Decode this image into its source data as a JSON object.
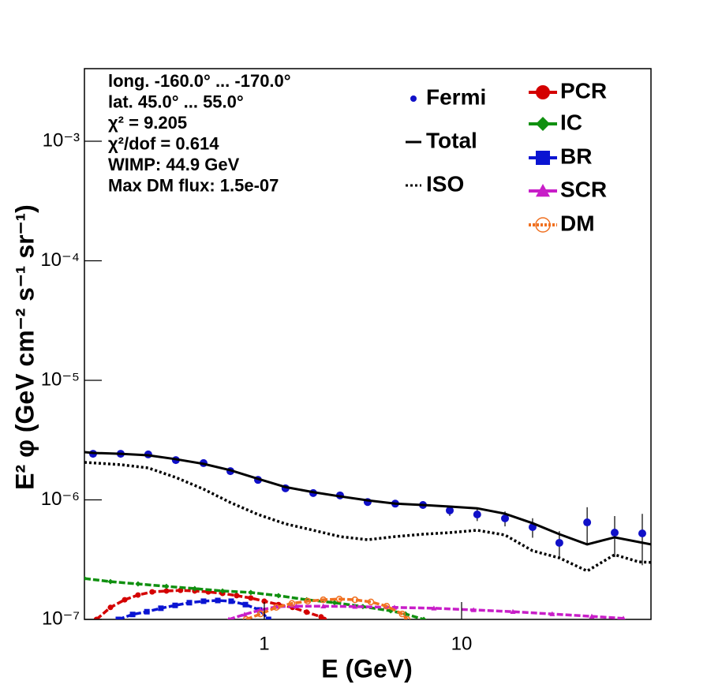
{
  "chart_data": {
    "type": "line",
    "x_label": "E (GeV)",
    "y_label": "E² φ (GeV cm⁻² s⁻¹ sr⁻¹)",
    "log_x": true,
    "log_y": true,
    "xlim": [
      0.1225,
      91.2
    ],
    "ylim": [
      1e-07,
      0.00405
    ],
    "xticks": [
      1,
      10
    ],
    "yticks": [
      {
        "value": 1e-07,
        "label": "10⁻⁷"
      },
      {
        "value": 1e-06,
        "label": "10⁻⁶"
      },
      {
        "value": 1e-05,
        "label": "10⁻⁵"
      },
      {
        "value": 0.0001,
        "label": "10⁻⁴"
      },
      {
        "value": 0.001,
        "label": "10⁻³"
      }
    ],
    "annotations": [
      "long. -160.0° ... -170.0°",
      "lat. 45.0° ... 55.0°",
      "χ² = 9.205",
      "χ²/dof = 0.614",
      "WIMP: 44.9 GeV",
      "Max DM flux: 1.5e-07"
    ],
    "series": [
      {
        "name": "Fermi",
        "color": "#1010c8",
        "style": "points",
        "marker": "circle",
        "x": [
          0.1355,
          0.187,
          0.258,
          0.356,
          0.492,
          0.673,
          0.929,
          1.28,
          1.77,
          2.42,
          3.34,
          4.61,
          6.37,
          8.71,
          12.0,
          16.6,
          22.9,
          31.3,
          43.3,
          59.7,
          82.4
        ],
        "values": [
          2.43e-06,
          2.43e-06,
          2.4e-06,
          2.15e-06,
          2.03e-06,
          1.74e-06,
          1.47e-06,
          1.25e-06,
          1.14e-06,
          1.09e-06,
          9.6e-07,
          9.3e-07,
          9.06e-07,
          8.15e-07,
          7.55e-07,
          7e-07,
          5.92e-07,
          4.37e-07,
          6.48e-07,
          5.32e-07,
          5.24e-07
        ],
        "errors": [
          4e-08,
          4e-08,
          4e-08,
          3e-08,
          3e-08,
          3e-08,
          3e-08,
          2e-08,
          2e-08,
          3e-08,
          4e-08,
          4e-08,
          5e-08,
          8e-08,
          9e-08,
          1e-07,
          1.1e-07,
          1.1e-07,
          2.2e-07,
          2e-07,
          2.4e-07
        ]
      },
      {
        "name": "Total",
        "color": "#000000",
        "style": "solid",
        "x": [
          0.1225,
          0.1355,
          0.187,
          0.258,
          0.356,
          0.492,
          0.673,
          0.929,
          1.28,
          1.77,
          2.42,
          3.34,
          4.61,
          6.37,
          8.71,
          12.0,
          16.6,
          22.9,
          31.3,
          43.3,
          59.7,
          91.2
        ],
        "values": [
          2.51e-06,
          2.47e-06,
          2.43e-06,
          2.36e-06,
          2.19e-06,
          2e-06,
          1.77e-06,
          1.5e-06,
          1.28e-06,
          1.16e-06,
          1.07e-06,
          9.9e-07,
          9.3e-07,
          9.06e-07,
          8.79e-07,
          8.5e-07,
          7.66e-07,
          6.38e-07,
          5.16e-07,
          4.24e-07,
          4.86e-07,
          4.24e-07
        ]
      },
      {
        "name": "ISO",
        "color": "#000000",
        "style": "dotted",
        "x": [
          0.1225,
          0.187,
          0.258,
          0.356,
          0.492,
          0.673,
          0.929,
          1.28,
          1.77,
          2.42,
          3.34,
          4.61,
          6.37,
          8.71,
          12.0,
          16.6,
          22.9,
          31.3,
          43.3,
          59.7,
          79.0,
          91.2
        ],
        "values": [
          2.06e-06,
          1.97e-06,
          1.85e-06,
          1.54e-06,
          1.23e-06,
          9.5e-07,
          7.55e-07,
          6.3e-07,
          5.57e-07,
          4.93e-07,
          4.64e-07,
          4.93e-07,
          5.16e-07,
          5.32e-07,
          5.57e-07,
          5.08e-07,
          3.75e-07,
          3.27e-07,
          2.54e-07,
          3.48e-07,
          3.03e-07,
          3e-07
        ]
      },
      {
        "name": "PCR",
        "color": "#d40000",
        "style": "dashed",
        "marker": "circle",
        "x": [
          0.141,
          0.166,
          0.196,
          0.229,
          0.27,
          0.319,
          0.376,
          0.444,
          0.52,
          0.614,
          0.724,
          0.854,
          1.0,
          1.18,
          1.39,
          1.64,
          1.94,
          2.01
        ],
        "values": [
          1e-07,
          1.26e-07,
          1.46e-07,
          1.6e-07,
          1.7e-07,
          1.73e-07,
          1.75e-07,
          1.73e-07,
          1.7e-07,
          1.65e-07,
          1.58e-07,
          1.51e-07,
          1.42e-07,
          1.33e-07,
          1.26e-07,
          1.15e-07,
          1.05e-07,
          1e-07
        ]
      },
      {
        "name": "IC",
        "color": "#109010",
        "style": "dashed",
        "marker": "diamond",
        "x": [
          0.1225,
          0.166,
          0.229,
          0.319,
          0.444,
          0.614,
          0.854,
          1.18,
          1.64,
          2.27,
          3.16,
          4.37,
          5.2,
          6.43
        ],
        "values": [
          2.2e-07,
          2.07e-07,
          1.98e-07,
          1.89e-07,
          1.81e-07,
          1.73e-07,
          1.68e-07,
          1.58e-07,
          1.46e-07,
          1.38e-07,
          1.28e-07,
          1.18e-07,
          1.11e-07,
          1e-07
        ]
      },
      {
        "name": "BR",
        "color": "#0a14d2",
        "style": "dashed",
        "marker": "square",
        "x": [
          0.182,
          0.215,
          0.254,
          0.299,
          0.353,
          0.417,
          0.492,
          0.581,
          0.679,
          0.802,
          0.946,
          1.05
        ],
        "values": [
          1e-07,
          1.1e-07,
          1.16e-07,
          1.24e-07,
          1.31e-07,
          1.38e-07,
          1.42e-07,
          1.44e-07,
          1.42e-07,
          1.33e-07,
          1.2e-07,
          1e-07
        ]
      },
      {
        "name": "SCR",
        "color": "#c81ec8",
        "style": "dashed",
        "marker": "triangle",
        "x": [
          0.661,
          0.794,
          0.955,
          1.17,
          1.45,
          1.99,
          2.88,
          4.57,
          7.24,
          11.5,
          18.2,
          28.8,
          45.7,
          66.1
        ],
        "values": [
          1e-07,
          1.1e-07,
          1.2e-07,
          1.28e-07,
          1.29e-07,
          1.29e-07,
          1.28e-07,
          1.26e-07,
          1.24e-07,
          1.2e-07,
          1.16e-07,
          1.11e-07,
          1.06e-07,
          1.02e-07
        ]
      },
      {
        "name": "DM",
        "color": "#f07020",
        "style": "dashed",
        "marker": "open-circle",
        "x": [
          0.809,
          0.955,
          1.15,
          1.38,
          1.66,
          1.99,
          2.4,
          2.88,
          3.47,
          4.17,
          5.0,
          5.3
        ],
        "values": [
          1e-07,
          1.11e-07,
          1.26e-07,
          1.36e-07,
          1.42e-07,
          1.46e-07,
          1.48e-07,
          1.46e-07,
          1.4e-07,
          1.29e-07,
          1.11e-07,
          1e-07
        ]
      }
    ]
  }
}
